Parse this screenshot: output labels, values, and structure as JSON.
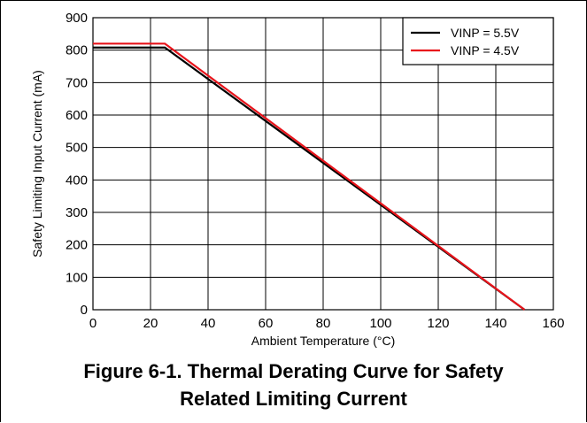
{
  "chart_data": {
    "type": "line",
    "xlabel": "Ambient Temperature (°C)",
    "ylabel": "Safety Limiting Input Current (mA)",
    "xlim": [
      0,
      160
    ],
    "ylim": [
      0,
      900
    ],
    "xticks": [
      "0",
      "20",
      "40",
      "60",
      "80",
      "100",
      "120",
      "140",
      "160"
    ],
    "yticks": [
      "0",
      "100",
      "200",
      "300",
      "400",
      "500",
      "600",
      "700",
      "800",
      "900"
    ],
    "grid": true,
    "legend_position": "top-right",
    "series": [
      {
        "name": "VINP = 5.5V",
        "color": "#000000",
        "x": [
          0,
          25,
          150
        ],
        "y": [
          808,
          808,
          0
        ]
      },
      {
        "name": "VINP = 4.5V",
        "color": "#e8141b",
        "x": [
          0,
          25,
          150
        ],
        "y": [
          820,
          820,
          0
        ]
      }
    ]
  },
  "caption": {
    "line1": "Figure 6-1. Thermal Derating Curve for Safety",
    "line2": "Related Limiting Current"
  }
}
